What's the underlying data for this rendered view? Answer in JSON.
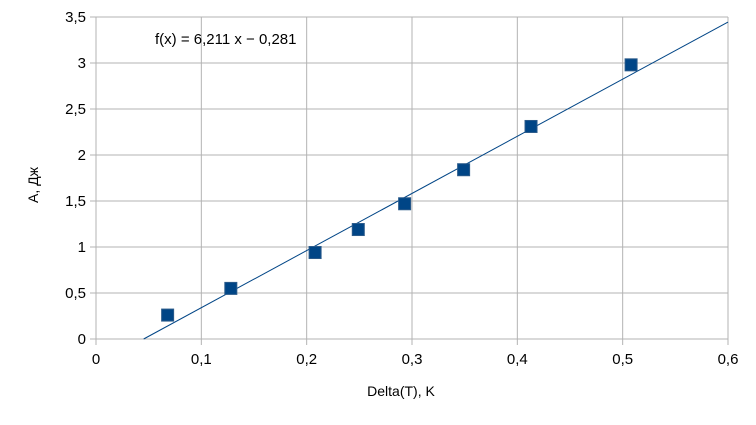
{
  "chart_data": {
    "type": "scatter",
    "xlabel": "Delta(T), K",
    "ylabel": "A, Дж",
    "xlim": [
      0,
      0.6
    ],
    "ylim": [
      0,
      3.5
    ],
    "x_ticks": [
      "0",
      "0,1",
      "0,2",
      "0,3",
      "0,4",
      "0,5",
      "0,6"
    ],
    "y_ticks": [
      "0",
      "0,5",
      "1",
      "1,5",
      "2",
      "2,5",
      "3",
      "3,5"
    ],
    "grid": true,
    "legend": "none",
    "series": [
      {
        "points": [
          {
            "x": 0.068,
            "y": 0.26
          },
          {
            "x": 0.128,
            "y": 0.55
          },
          {
            "x": 0.208,
            "y": 0.94
          },
          {
            "x": 0.249,
            "y": 1.19
          },
          {
            "x": 0.293,
            "y": 1.47
          },
          {
            "x": 0.349,
            "y": 1.84
          },
          {
            "x": 0.413,
            "y": 2.31
          },
          {
            "x": 0.508,
            "y": 2.98
          }
        ],
        "color": "#004586"
      }
    ],
    "trendline": {
      "slope": 6.211,
      "intercept": -0.281,
      "color": "#004586",
      "equation_label": "f(x) = 6,211 x − 0,281"
    }
  }
}
